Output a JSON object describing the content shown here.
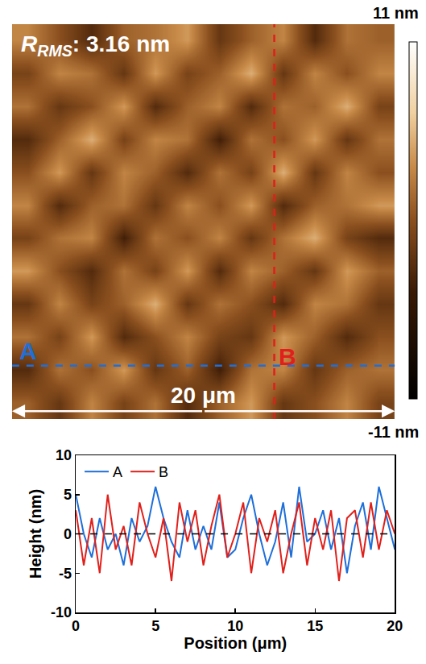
{
  "chart_data": [
    {
      "type": "heatmap",
      "tick_labels": false,
      "xlim": [
        0,
        20
      ],
      "ylim": [
        0,
        20
      ],
      "cells": [
        [
          1,
          -2,
          3,
          -1,
          2,
          -3,
          1,
          4,
          -2,
          0,
          3,
          -1
        ],
        [
          -3,
          2,
          0,
          4,
          -2,
          1,
          -4,
          2,
          3,
          -2,
          1,
          2
        ],
        [
          2,
          -1,
          4,
          -3,
          0,
          3,
          -1,
          -2,
          4,
          1,
          -3,
          0
        ],
        [
          -2,
          3,
          -1,
          1,
          5,
          -2,
          2,
          0,
          -3,
          3,
          2,
          -2
        ],
        [
          4,
          0,
          -3,
          2,
          -1,
          4,
          -3,
          3,
          1,
          -2,
          4,
          1
        ],
        [
          -1,
          2,
          3,
          -4,
          2,
          0,
          3,
          -2,
          2,
          5,
          -1,
          -3
        ],
        [
          3,
          -3,
          1,
          2,
          -2,
          3,
          0,
          4,
          -3,
          1,
          2,
          4
        ],
        [
          0,
          4,
          -2,
          3,
          1,
          -3,
          2,
          -1,
          5,
          -2,
          3,
          0
        ],
        [
          -3,
          1,
          5,
          -1,
          3,
          2,
          -4,
          2,
          0,
          4,
          -2,
          2
        ],
        [
          2,
          -2,
          0,
          4,
          -3,
          1,
          3,
          -3,
          2,
          1,
          5,
          -1
        ],
        [
          -1,
          3,
          2,
          -2,
          4,
          -1,
          1,
          5,
          -2,
          3,
          0,
          3
        ],
        [
          3,
          0,
          -3,
          1,
          2,
          4,
          -2,
          1,
          3,
          -3,
          2,
          1
        ]
      ],
      "colorbar": {
        "range": [
          -11,
          11
        ],
        "ticks": [
          {
            "value": 11,
            "label": "11 nm"
          },
          {
            "value": -11,
            "label": "-11 nm"
          }
        ]
      },
      "annotation": {
        "symbol": "R",
        "subscript": "RMS",
        "text": ": 3.16 nm"
      },
      "profiles": [
        {
          "name": "A",
          "color": "#1e6fd9",
          "line_style": "dashed",
          "y": 2.7
        },
        {
          "name": "B",
          "color": "#e0201b",
          "line_style": "dashed",
          "x": 13.7
        }
      ],
      "scale_bar": {
        "label": "20 μm",
        "from": 0,
        "to": 20
      }
    },
    {
      "type": "line",
      "xlabel": "Position (μm)",
      "ylabel": "Height (nm)",
      "x": [
        0,
        0.5,
        1,
        1.5,
        2,
        2.5,
        3,
        3.5,
        4,
        4.5,
        5,
        5.5,
        6,
        6.5,
        7,
        7.5,
        8,
        8.5,
        9,
        9.5,
        10,
        10.5,
        11,
        11.5,
        12,
        12.5,
        13,
        13.5,
        14,
        14.5,
        15,
        15.5,
        16,
        16.5,
        17,
        17.5,
        18,
        18.5,
        19,
        19.5,
        20
      ],
      "series": [
        {
          "name": "A",
          "color": "#1e6fd9",
          "values": [
            5,
            0,
            -3,
            2,
            -2,
            0,
            -4,
            2,
            -1,
            1,
            6,
            2,
            -1,
            -3,
            3,
            -2,
            1,
            -2,
            4,
            -3,
            -2,
            2,
            5,
            0,
            -4,
            -1,
            4,
            -3,
            6,
            -1,
            0,
            3,
            -2,
            2,
            -5,
            1,
            4,
            -2,
            6,
            2,
            -2
          ]
        },
        {
          "name": "B",
          "color": "#e0201b",
          "values": [
            3,
            -4,
            2,
            -5,
            5,
            -2,
            1,
            -4,
            4,
            0,
            -3,
            2,
            -6,
            4,
            -1,
            3,
            -4,
            1,
            5,
            -3,
            0,
            4,
            -5,
            2,
            -1,
            3,
            -5,
            0,
            4,
            -4,
            2,
            -2,
            3,
            -6,
            2,
            3,
            -3,
            4,
            -2,
            3,
            0
          ]
        }
      ],
      "xlim": [
        0,
        20
      ],
      "ylim": [
        -10,
        10
      ],
      "xticks": [
        0,
        5,
        10,
        15,
        20
      ],
      "yticks": [
        -10,
        -5,
        0,
        5,
        10
      ],
      "hline": 0,
      "legend": "upper left"
    }
  ]
}
